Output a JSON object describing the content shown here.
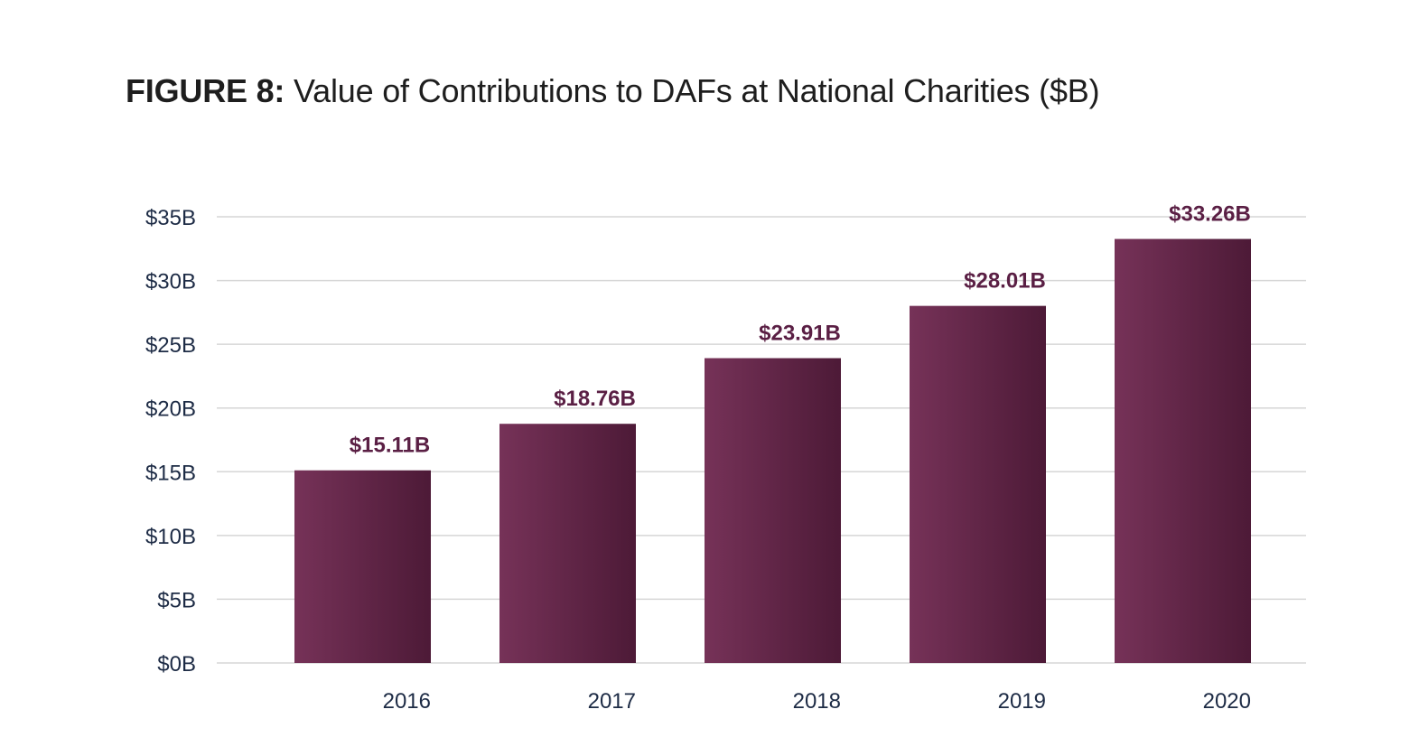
{
  "figure": {
    "label_bold": "FIGURE 8:",
    "label_rest": " Value of Contributions to DAFs at National Charities ($B)"
  },
  "chart_data": {
    "type": "bar",
    "title": "FIGURE 8: Value of Contributions to DAFs at National Charities ($B)",
    "xlabel": "",
    "ylabel": "",
    "categories": [
      "2016",
      "2017",
      "2018",
      "2019",
      "2020"
    ],
    "values": [
      15.11,
      18.76,
      23.91,
      28.01,
      33.26
    ],
    "data_labels": [
      "$15.11B",
      "$18.76B",
      "$23.91B",
      "$28.01B",
      "$33.26B"
    ],
    "ylim": [
      0,
      35
    ],
    "yticks": [
      0,
      5,
      10,
      15,
      20,
      25,
      30,
      35
    ],
    "ytick_labels": [
      "$0B",
      "$5B",
      "$10B",
      "$15B",
      "$20B",
      "$25B",
      "$30B",
      "$35B"
    ],
    "grid": true,
    "legend": "none",
    "colors": {
      "bar_start": "#763258",
      "bar_end": "#4d1a37",
      "label": "#5a1f44",
      "axis_text": "#1d2b45",
      "grid": "#d6d6d6"
    }
  }
}
